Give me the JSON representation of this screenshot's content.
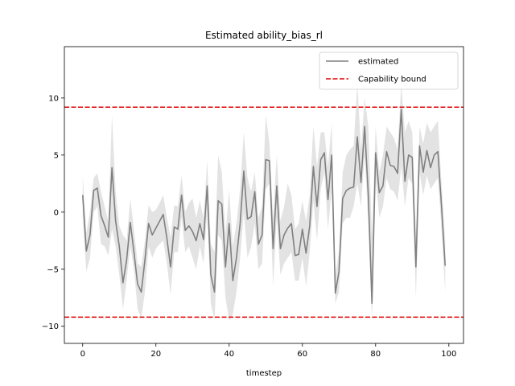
{
  "chart_data": {
    "type": "line",
    "title": "Estimated ability_bias_rl",
    "xlabel": "timestep",
    "ylabel": "",
    "xlim": [
      -5,
      104
    ],
    "ylim": [
      -11.5,
      14.5
    ],
    "xticks": [
      0,
      20,
      40,
      60,
      80,
      100
    ],
    "yticks": [
      -10,
      -5,
      0,
      5,
      10
    ],
    "grid": false,
    "legend_position": "top-right",
    "series": [
      {
        "name": "estimated",
        "color": "#808080",
        "x": [
          0,
          1,
          2,
          3,
          4,
          5,
          6,
          7,
          8,
          9,
          10,
          11,
          12,
          13,
          14,
          15,
          16,
          17,
          18,
          19,
          20,
          21,
          22,
          23,
          24,
          25,
          26,
          27,
          28,
          29,
          30,
          31,
          32,
          33,
          34,
          35,
          36,
          37,
          38,
          39,
          40,
          41,
          42,
          43,
          44,
          45,
          46,
          47,
          48,
          49,
          50,
          51,
          52,
          53,
          54,
          55,
          56,
          57,
          58,
          59,
          60,
          61,
          62,
          63,
          64,
          65,
          66,
          67,
          68,
          69,
          70,
          71,
          72,
          73,
          74,
          75,
          76,
          77,
          78,
          79,
          80,
          81,
          82,
          83,
          84,
          85,
          86,
          87,
          88,
          89,
          90,
          91,
          92,
          93,
          94,
          95,
          96,
          97,
          98,
          99
        ],
        "values": [
          1.5,
          -3.4,
          -2.0,
          1.9,
          2.1,
          -0.3,
          -1.2,
          -2.2,
          3.9,
          -0.8,
          -3.0,
          -6.2,
          -4.2,
          -0.9,
          -3.5,
          -6.3,
          -7.0,
          -4.2,
          -1.0,
          -2.0,
          -1.4,
          -0.8,
          -0.2,
          -2.3,
          -4.8,
          -1.3,
          -1.5,
          1.5,
          -1.6,
          -1.2,
          -1.7,
          -2.5,
          -1.0,
          -2.4,
          2.3,
          -5.5,
          -7.0,
          1.0,
          0.7,
          -4.8,
          -1.0,
          -6.0,
          -4.0,
          -1.0,
          3.6,
          -0.6,
          -0.4,
          1.8,
          -2.8,
          -2.0,
          4.6,
          4.5,
          -3.2,
          2.3,
          -3.2,
          -2.0,
          -1.4,
          -1.0,
          -3.8,
          -3.7,
          -1.5,
          -3.6,
          -1.2,
          4.0,
          0.5,
          4.6,
          5.2,
          1.1,
          5.0,
          -7.1,
          -5.2,
          1.2,
          1.9,
          2.1,
          2.2,
          6.6,
          2.6,
          7.5,
          1.5,
          -8.0,
          5.2,
          1.7,
          2.3,
          5.3,
          4.1,
          4.0,
          3.4,
          9.0,
          2.7,
          5.0,
          4.8,
          -4.8,
          5.8,
          3.5,
          5.4,
          3.9,
          5.0,
          5.3,
          0.5,
          -4.7
        ],
        "band_upper": [
          3.2,
          -1.8,
          0.0,
          3.0,
          3.4,
          1.8,
          0.5,
          -0.8,
          8.5,
          1.8,
          -1.2,
          -2.0,
          -2.5,
          1.2,
          -1.5,
          -4.5,
          -4.8,
          -2.5,
          0.6,
          0.0,
          0.2,
          0.8,
          1.5,
          -0.5,
          -2.2,
          0.6,
          0.5,
          3.2,
          0.0,
          0.8,
          1.2,
          -0.5,
          1.0,
          -0.5,
          4.5,
          -2.8,
          -3.5,
          5.0,
          3.5,
          -2.0,
          2.0,
          -3.0,
          -1.0,
          2.0,
          7.0,
          3.0,
          1.8,
          3.5,
          -0.5,
          0.5,
          8.5,
          6.0,
          -0.5,
          5.0,
          -0.8,
          0.5,
          2.5,
          1.5,
          -1.5,
          -1.0,
          1.0,
          -0.8,
          1.5,
          7.5,
          4.0,
          7.0,
          7.0,
          4.0,
          7.8,
          -5.5,
          -3.5,
          3.5,
          5.0,
          5.5,
          5.8,
          11.3,
          5.5,
          10.0,
          7.5,
          -2.0,
          7.5,
          3.5,
          5.0,
          7.5,
          7.0,
          6.5,
          5.5,
          11.2,
          7.0,
          8.0,
          7.0,
          -1.8,
          7.5,
          6.0,
          7.8,
          7.0,
          7.5,
          8.0,
          2.5,
          -2.5
        ],
        "band_lower": [
          -0.5,
          -5.2,
          -4.0,
          0.0,
          0.5,
          -2.8,
          -3.0,
          -3.8,
          -1.5,
          -3.0,
          -5.5,
          -8.5,
          -6.0,
          -3.0,
          -5.0,
          -8.5,
          -9.3,
          -7.0,
          -3.0,
          -4.0,
          -3.2,
          -2.8,
          -2.5,
          -4.5,
          -7.2,
          -3.5,
          -3.5,
          -0.5,
          -3.5,
          -3.0,
          -4.0,
          -5.0,
          -3.0,
          -4.5,
          0.0,
          -8.0,
          -9.5,
          -2.0,
          -2.5,
          -7.5,
          -9.5,
          -9.0,
          -7.0,
          -4.0,
          0.0,
          -4.0,
          -3.0,
          -1.0,
          -5.0,
          -4.5,
          2.0,
          2.5,
          -6.5,
          -0.5,
          -5.5,
          -4.5,
          -4.0,
          -3.5,
          -6.0,
          -6.0,
          -4.0,
          -6.5,
          -3.5,
          1.0,
          -2.5,
          2.0,
          3.5,
          -1.5,
          2.0,
          -8.0,
          -7.0,
          -1.0,
          -0.5,
          -0.5,
          0.5,
          2.5,
          0.5,
          5.0,
          -1.0,
          -9.5,
          3.0,
          -0.5,
          0.5,
          3.0,
          2.0,
          1.8,
          1.0,
          4.0,
          0.5,
          3.0,
          2.5,
          -7.5,
          3.5,
          1.5,
          3.2,
          2.0,
          2.5,
          3.0,
          -1.5,
          -7.0
        ]
      },
      {
        "name": "Capability bound",
        "color": "#e00000",
        "style": "dashed",
        "x": [
          -5,
          104
        ],
        "values": [
          9.2,
          9.2
        ]
      },
      {
        "name": "",
        "color": "#e00000",
        "style": "dashed",
        "x": [
          -5,
          104
        ],
        "values": [
          -9.2,
          -9.2
        ]
      }
    ]
  }
}
